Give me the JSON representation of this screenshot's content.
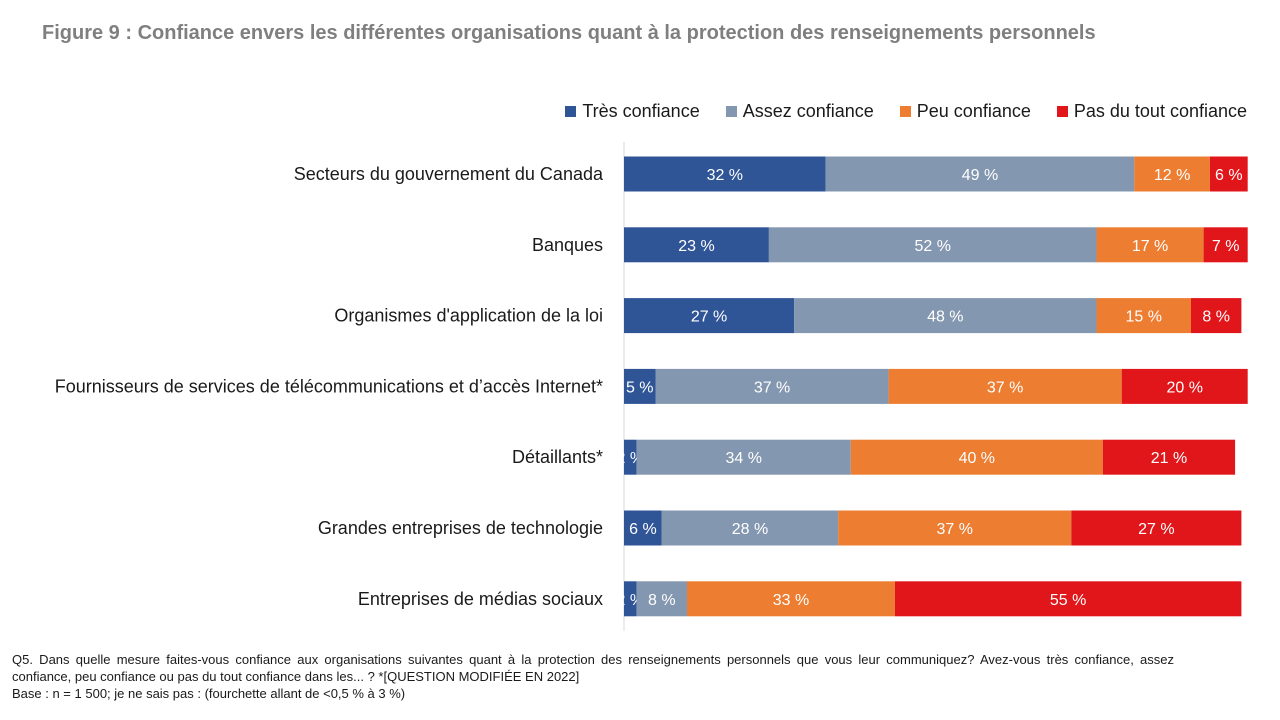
{
  "chart_data": {
    "type": "bar",
    "orientation": "horizontal",
    "stacked": true,
    "title": "Figure 9 : Confiance envers les différentes organisations quant à la protection des renseignements personnels",
    "categories": [
      "Secteurs du gouvernement du Canada",
      "Banques",
      "Organismes d'application de la loi",
      "Fournisseurs de services de télécommunications et d’accès Internet*",
      "Détaillants*",
      "Grandes entreprises de technologie",
      "Entreprises de médias sociaux"
    ],
    "series": [
      {
        "name": "Très confiance",
        "color": "#2f5597",
        "values": [
          32,
          23,
          27,
          5,
          2,
          6,
          2
        ]
      },
      {
        "name": "Assez confiance",
        "color": "#8497b0",
        "values": [
          49,
          52,
          48,
          37,
          34,
          28,
          8
        ]
      },
      {
        "name": "Peu confiance",
        "color": "#ed7d31",
        "values": [
          12,
          17,
          15,
          37,
          40,
          37,
          33
        ]
      },
      {
        "name": "Pas du tout confiance",
        "color": "#e0161b",
        "values": [
          6,
          7,
          8,
          20,
          21,
          27,
          55
        ]
      }
    ],
    "value_suffix": " %",
    "xlim": [
      0,
      100
    ],
    "legend_position": "top-right",
    "grid": false
  },
  "footnote": {
    "question": "Q5. Dans quelle mesure faites-vous confiance aux organisations suivantes quant à la protection des renseignements personnels que vous leur communiquez? Avez-vous très confiance, assez confiance, peu confiance ou pas du tout confiance dans les... ? *[QUESTION MODIFIÉE EN 2022]",
    "base": "Base : n = 1 500; je ne sais pas : (fourchette allant de <0,5 % à 3 %)"
  }
}
